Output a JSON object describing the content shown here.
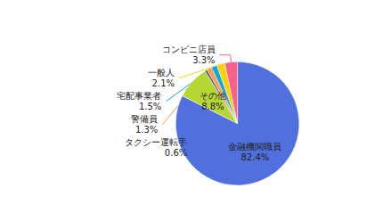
{
  "chart_data": {
    "type": "pie",
    "categories": [
      "金融機関職員",
      "その他",
      "タクシー運転手",
      "警備員",
      "宅配事業者",
      "一般人",
      "コンビニ店員"
    ],
    "values": [
      82.4,
      8.8,
      0.6,
      1.3,
      1.5,
      2.1,
      3.3
    ],
    "value_labels": [
      "82.4%",
      "8.8%",
      "0.6%",
      "1.3%",
      "1.5%",
      "2.1%",
      "3.3%"
    ],
    "data_labels": true
  }
}
